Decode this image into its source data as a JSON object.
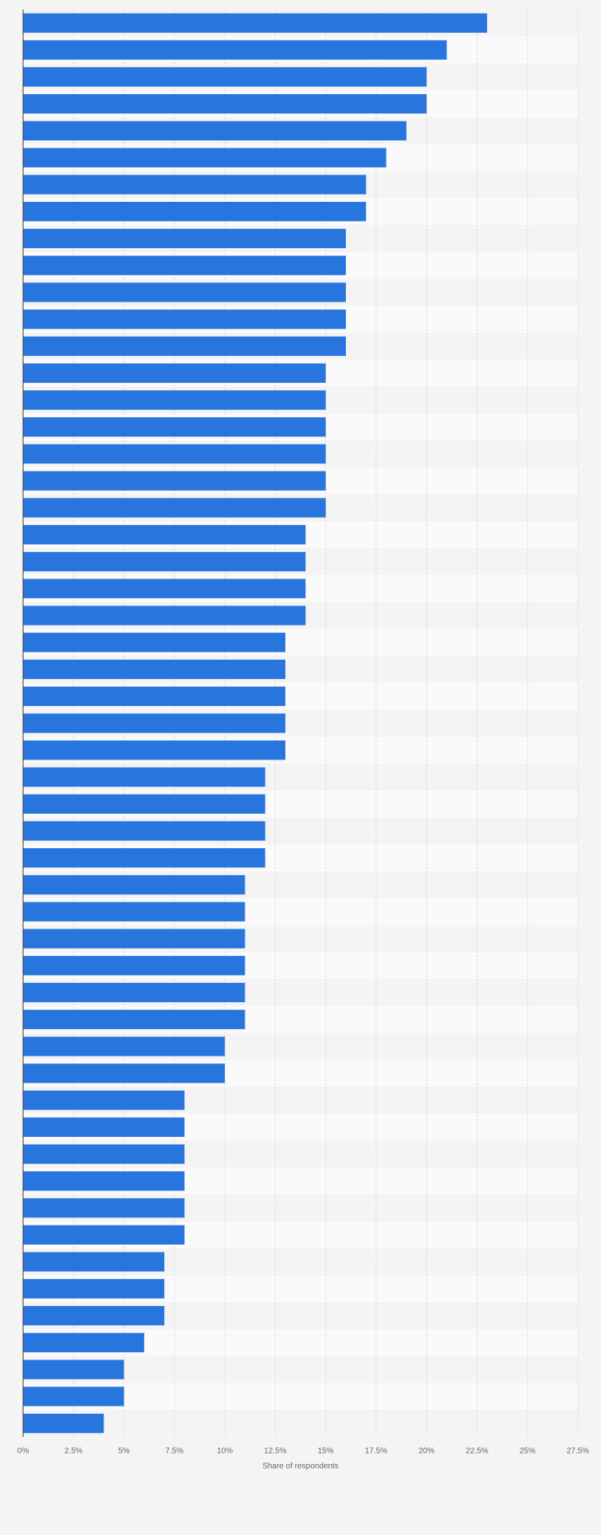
{
  "chart_data": {
    "type": "bar",
    "orientation": "horizontal",
    "categories": [
      null,
      null,
      null,
      null,
      null,
      null,
      null,
      null,
      null,
      null,
      null,
      null,
      null,
      null,
      null,
      null,
      null,
      null,
      null,
      null,
      null,
      null,
      null,
      null,
      null,
      null,
      null,
      null,
      null,
      null,
      null,
      null,
      null,
      null,
      null,
      null,
      null,
      null,
      null,
      null,
      null,
      null,
      null,
      null,
      null,
      null,
      null,
      null,
      null,
      null,
      null,
      null,
      null
    ],
    "values": [
      23,
      21,
      20,
      20,
      19,
      18,
      17,
      17,
      16,
      16,
      16,
      16,
      16,
      15,
      15,
      15,
      15,
      15,
      15,
      14,
      14,
      14,
      14,
      13,
      13,
      13,
      13,
      13,
      12,
      12,
      12,
      12,
      11,
      11,
      11,
      11,
      11,
      11,
      10,
      10,
      8,
      8,
      8,
      8,
      8,
      8,
      7,
      7,
      7,
      6,
      5,
      5,
      4
    ],
    "color": "#2876dd",
    "xlabel": "Share of respondents",
    "xlim": [
      0,
      27.5
    ],
    "xticks": [
      {
        "value": 0,
        "label": "0%"
      },
      {
        "value": 2.5,
        "label": "2.5%"
      },
      {
        "value": 5,
        "label": "5%"
      },
      {
        "value": 7.5,
        "label": "7.5%"
      },
      {
        "value": 10,
        "label": "10%"
      },
      {
        "value": 12.5,
        "label": "12.5%"
      },
      {
        "value": 15,
        "label": "15%"
      },
      {
        "value": 17.5,
        "label": "17.5%"
      },
      {
        "value": 20,
        "label": "20%"
      },
      {
        "value": 22.5,
        "label": "22.5%"
      },
      {
        "value": 25,
        "label": "25%"
      },
      {
        "value": 27.5,
        "label": "27.5%"
      }
    ],
    "grid": true
  }
}
